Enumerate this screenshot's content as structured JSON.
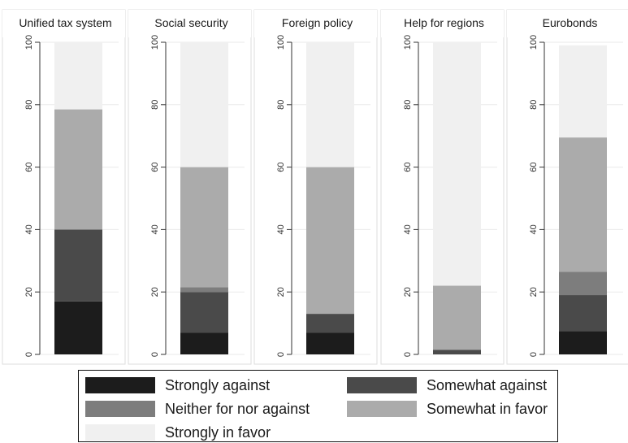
{
  "chart_data": {
    "type": "bar",
    "stacked": true,
    "categories": [
      "Unified tax system",
      "Social security",
      "Foreign policy",
      "Help for regions",
      "Eurobonds"
    ],
    "ylim": [
      0,
      100
    ],
    "yticks": [
      "0",
      "20",
      "40",
      "60",
      "80",
      "100"
    ],
    "grid": true,
    "legend_position": "bottom",
    "series": [
      {
        "name": "Strongly against",
        "color": "#1c1c1c",
        "values": [
          17,
          7,
          7,
          0,
          7.5
        ]
      },
      {
        "name": "Somewhat against",
        "color": "#4a4a4a",
        "values": [
          23,
          13,
          6,
          1.5,
          11.5
        ]
      },
      {
        "name": "Neither for nor against",
        "color": "#7d7d7d",
        "values": [
          0,
          1.5,
          0,
          0,
          7.5
        ]
      },
      {
        "name": "Somewhat in favor",
        "color": "#ababab",
        "values": [
          38.5,
          38.5,
          47,
          20.5,
          43
        ]
      },
      {
        "name": "Strongly in favor",
        "color": "#f0f0f0",
        "values": [
          21.5,
          40,
          40,
          78,
          29.5
        ]
      }
    ]
  }
}
